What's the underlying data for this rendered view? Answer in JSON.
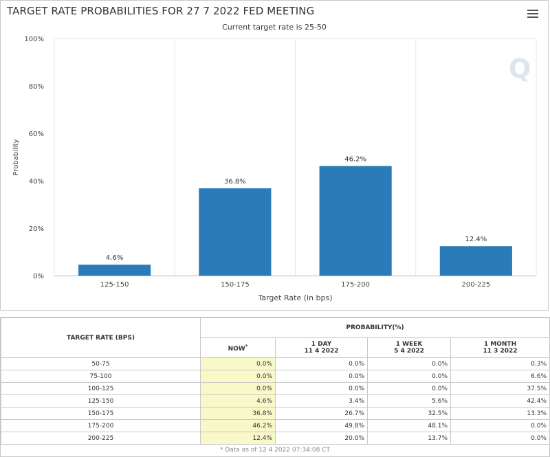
{
  "header": {
    "title": "TARGET RATE PROBABILITIES FOR 27 7 2022 FED MEETING",
    "subtitle": "Current target rate is 25-50",
    "menu_icon": "hamburger-menu-icon",
    "watermark": "Q"
  },
  "chart_data": {
    "type": "bar",
    "title": "TARGET RATE PROBABILITIES FOR 27 7 2022 FED MEETING",
    "subtitle": "Current target rate is 25-50",
    "xlabel": "Target Rate (in bps)",
    "ylabel": "Probability",
    "categories": [
      "125-150",
      "150-175",
      "175-200",
      "200-225"
    ],
    "values": [
      4.6,
      36.8,
      46.2,
      12.4
    ],
    "data_labels": [
      "4.6%",
      "36.8%",
      "46.2%",
      "12.4%"
    ],
    "yticks": [
      "0%",
      "20%",
      "40%",
      "60%",
      "80%",
      "100%"
    ],
    "ylim": [
      0,
      100
    ],
    "grid": "vertical",
    "bar_color": "#2b7bb9"
  },
  "table": {
    "col_rate": "TARGET RATE (BPS)",
    "col_group": "PROBABILITY(%)",
    "col_now": "NOW",
    "col_now_mark": "*",
    "col_1day": "1 DAY",
    "col_1day_date": "11 4 2022",
    "col_1week": "1 WEEK",
    "col_1week_date": "5 4 2022",
    "col_1month": "1 MONTH",
    "col_1month_date": "11 3 2022",
    "rows": [
      {
        "rate": "50-75",
        "now": "0.0%",
        "day": "0.0%",
        "week": "0.0%",
        "month": "0.3%"
      },
      {
        "rate": "75-100",
        "now": "0.0%",
        "day": "0.0%",
        "week": "0.0%",
        "month": "6.6%"
      },
      {
        "rate": "100-125",
        "now": "0.0%",
        "day": "0.0%",
        "week": "0.0%",
        "month": "37.5%"
      },
      {
        "rate": "125-150",
        "now": "4.6%",
        "day": "3.4%",
        "week": "5.6%",
        "month": "42.4%"
      },
      {
        "rate": "150-175",
        "now": "36.8%",
        "day": "26.7%",
        "week": "32.5%",
        "month": "13.3%"
      },
      {
        "rate": "175-200",
        "now": "46.2%",
        "day": "49.8%",
        "week": "48.1%",
        "month": "0.0%"
      },
      {
        "rate": "200-225",
        "now": "12.4%",
        "day": "20.0%",
        "week": "13.7%",
        "month": "0.0%"
      }
    ],
    "footnote": "* Data as of 12 4 2022 07:34:08 CT",
    "now_highlight": "#f8f8c8"
  }
}
